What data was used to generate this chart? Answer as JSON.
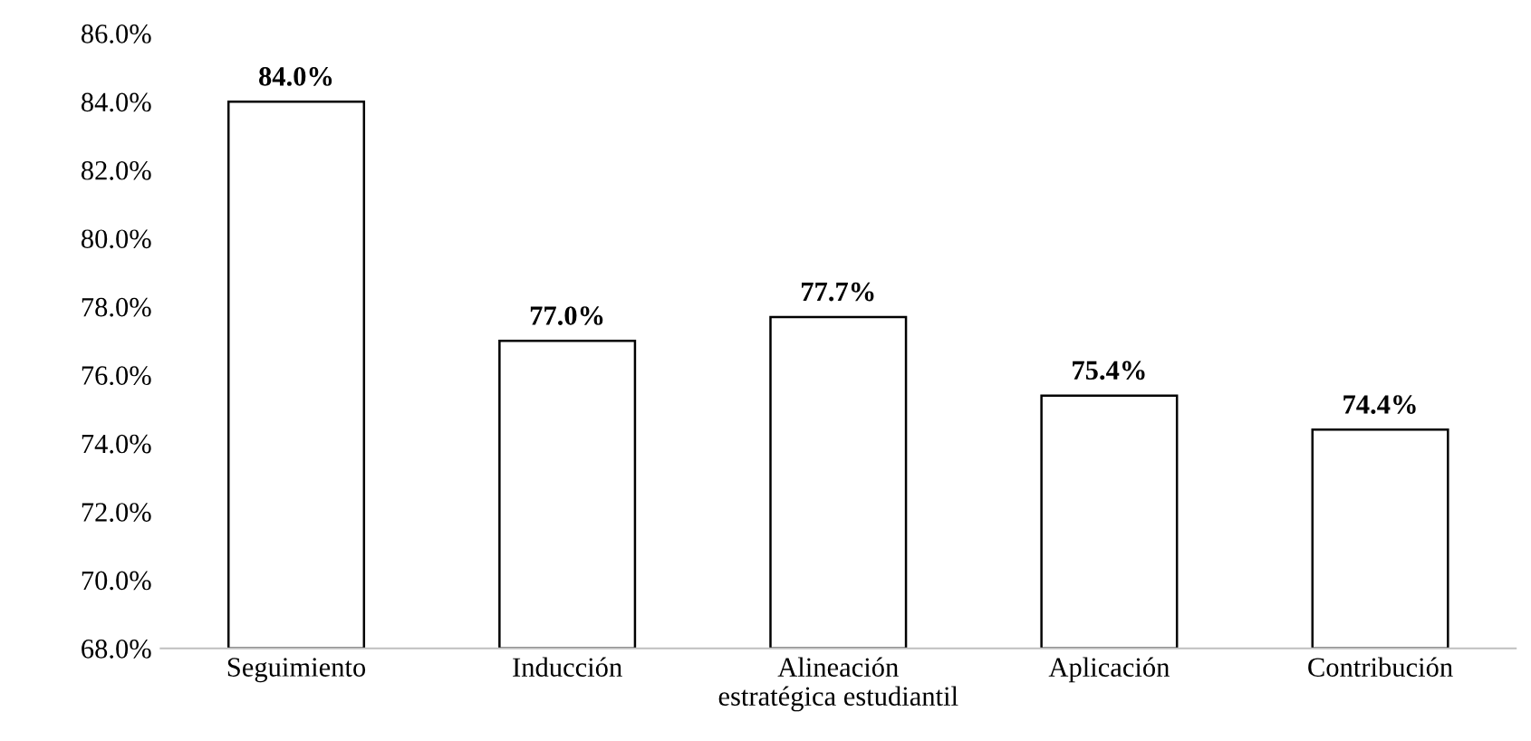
{
  "chart_data": {
    "type": "bar",
    "categories": [
      "Seguimiento",
      "Inducción",
      "Alineación\nestratégica estudiantil",
      "Aplicación",
      "Contribución"
    ],
    "values": [
      84.0,
      77.0,
      77.7,
      75.4,
      74.4
    ],
    "value_labels": [
      "84.0%",
      "77.0%",
      "77.7%",
      "75.4%",
      "74.4%"
    ],
    "color": "#ffffff",
    "ylim": [
      68,
      86
    ],
    "yticks": [
      {
        "value": 68,
        "label": "68.0%"
      },
      {
        "value": 70,
        "label": "70.0%"
      },
      {
        "value": 72,
        "label": "72.0%"
      },
      {
        "value": 74,
        "label": "74.0%"
      },
      {
        "value": 76,
        "label": "76.0%"
      },
      {
        "value": 78,
        "label": "78.0%"
      },
      {
        "value": 80,
        "label": "80.0%"
      },
      {
        "value": 82,
        "label": "82.0%"
      },
      {
        "value": 84,
        "label": "84.0%"
      },
      {
        "value": 86,
        "label": "86.0%"
      }
    ],
    "grid": false
  }
}
